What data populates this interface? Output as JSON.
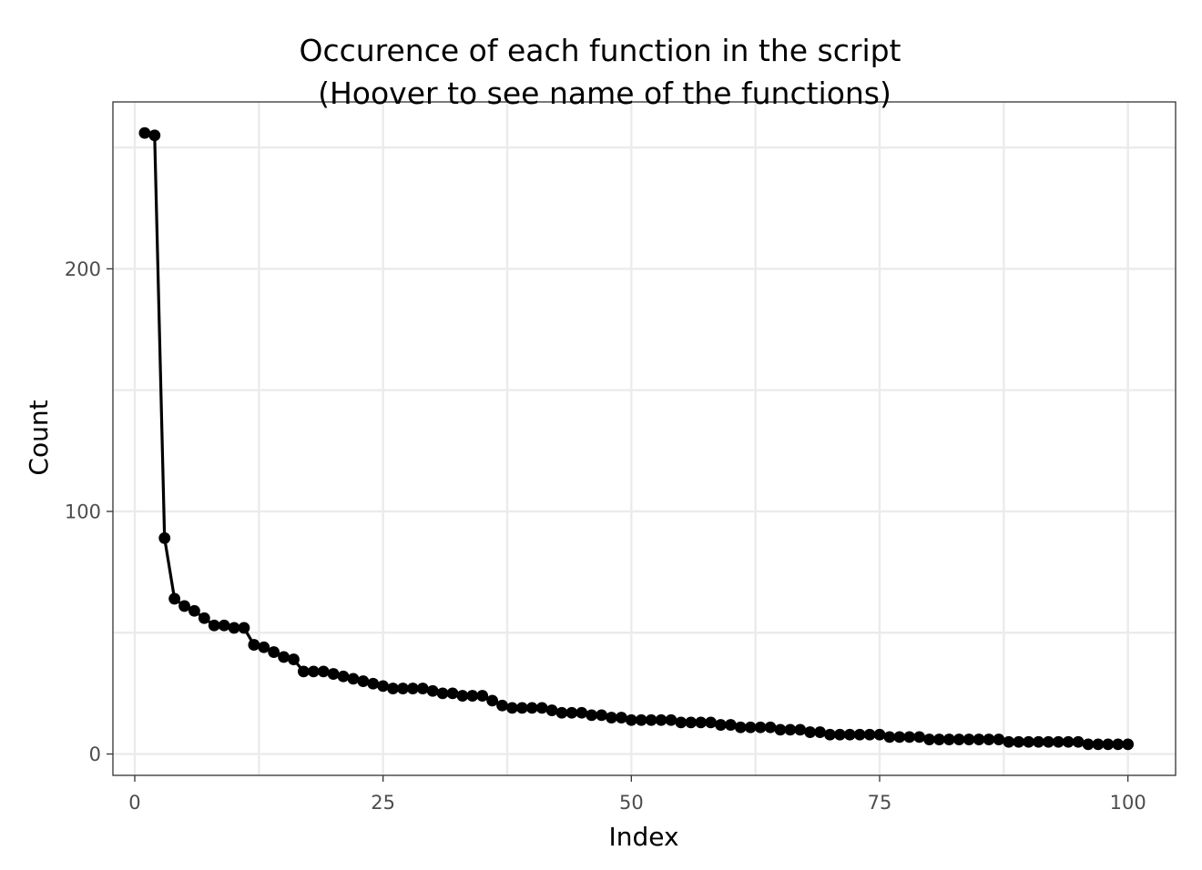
{
  "chart_data": {
    "type": "line",
    "title": "Occurence of each function in the script",
    "subtitle": "(Hoover to see name of the functions)",
    "xlabel": "Index",
    "ylabel": "Count",
    "xlim": [
      -2.2,
      104.8
    ],
    "ylim": [
      -8.8,
      268.8
    ],
    "xticks": [
      0,
      25,
      50,
      75,
      100
    ],
    "yticks": [
      0,
      100,
      200
    ],
    "grid": true,
    "line_color": "#000000",
    "marker_color": "#000000",
    "grid_color": "#ebebeb",
    "series": [
      {
        "x": [
          1,
          2,
          3,
          4,
          5,
          6,
          7,
          8,
          9,
          10,
          11,
          12,
          13,
          14,
          15,
          16,
          17,
          18,
          19,
          20,
          21,
          22,
          23,
          24,
          25,
          26,
          27,
          28,
          29,
          30,
          31,
          32,
          33,
          34,
          35,
          36,
          37,
          38,
          39,
          40,
          41,
          42,
          43,
          44,
          45,
          46,
          47,
          48,
          49,
          50,
          51,
          52,
          53,
          54,
          55,
          56,
          57,
          58,
          59,
          60,
          61,
          62,
          63,
          64,
          65,
          66,
          67,
          68,
          69,
          70,
          71,
          72,
          73,
          74,
          75,
          76,
          77,
          78,
          79,
          80,
          81,
          82,
          83,
          84,
          85,
          86,
          87,
          88,
          89,
          90,
          91,
          92,
          93,
          94,
          95,
          96,
          97,
          98,
          99,
          100
        ],
        "y": [
          256,
          255,
          89,
          64,
          61,
          59,
          56,
          53,
          53,
          52,
          52,
          45,
          44,
          42,
          40,
          39,
          34,
          34,
          34,
          33,
          32,
          31,
          30,
          29,
          28,
          27,
          27,
          27,
          27,
          26,
          25,
          25,
          24,
          24,
          24,
          22,
          20,
          19,
          19,
          19,
          19,
          18,
          17,
          17,
          17,
          16,
          16,
          15,
          15,
          14,
          14,
          14,
          14,
          14,
          13,
          13,
          13,
          13,
          12,
          12,
          11,
          11,
          11,
          11,
          10,
          10,
          10,
          9,
          9,
          8,
          8,
          8,
          8,
          8,
          8,
          7,
          7,
          7,
          7,
          6,
          6,
          6,
          6,
          6,
          6,
          6,
          6,
          5,
          5,
          5,
          5,
          5,
          5,
          5,
          5,
          4,
          4,
          4,
          4,
          4
        ]
      }
    ]
  }
}
